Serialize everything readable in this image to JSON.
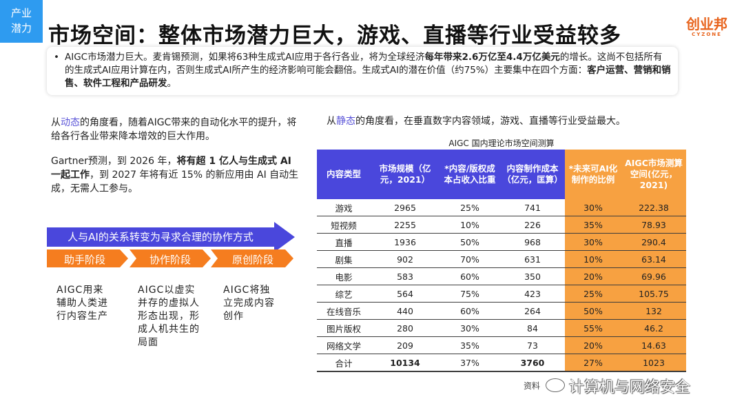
{
  "tag": {
    "line1": "产业",
    "line2": "潜力"
  },
  "title": "市场空间：整体市场潜力巨大，游戏、直播等行业受益较多",
  "logo": {
    "main": "创业邦",
    "sub": "CYZONE"
  },
  "summary": {
    "bullet": "•",
    "part1": "AIGC市场潜力巨大。麦肯锡预测，如果将63种生成式AI应用于各行各业，将为全球经济",
    "bold1": "每年带来2.6万亿至4.4万亿美元",
    "part2": "的增长。这尚不包括所有的生成式AI应用计算在内，否则生成式AI所产生的经济影响可能会翻倍。生成式AI的潜在价值（约75%）主要集中在四个方面：",
    "bold2": "客户运营、营销和销售、软件工程和产品研发",
    "part3": "。"
  },
  "left": {
    "p1_a": "从",
    "p1_hl": "动态",
    "p1_b": "的角度看，随着AIGC带来的自动化水平的提升，将给各行各业带来降本增效的巨大作用。",
    "p2_a": "Gartner预测，到 2026 年，",
    "p2_bold": "将有超 1 亿人与生成式 AI 一起工作",
    "p2_b": "，到 2027 年将有近 15% 的新应用由 AI 自动生成，无需人工参与。"
  },
  "arrow": {
    "label": "人与AI的关系转变为寻求合理的协作方式",
    "color": "#4a47dc"
  },
  "stages": [
    {
      "label": "助手阶段",
      "desc": "AIGC用来辅助人类进行内容生产"
    },
    {
      "label": "协作阶段",
      "desc": "AIGC以虚实并存的虚拟人形态出现，形成人机共生的局面"
    },
    {
      "label": "原创阶段",
      "desc": "AIGC将独立完成内容创作"
    }
  ],
  "stage_color": "#f57d1f",
  "right": {
    "a": "从",
    "hl": "静态",
    "b": "的角度看，在垂直数字内容领域，游戏、直播等行业受益最大。"
  },
  "table": {
    "title": "AIGC 国内理论市场空间测算",
    "headers": [
      "内容类型",
      "市场规模（亿元，2021）",
      "*内容/版权成本占收入比重",
      "内容制作成本（亿元，匡算）",
      "*未来可AI化制作的比例",
      "AIGC市场测算空间(亿元，2021)"
    ],
    "rows": [
      [
        "游戏",
        "2965",
        "25%",
        "741",
        "30%",
        "222.38"
      ],
      [
        "短视频",
        "2255",
        "10%",
        "226",
        "35%",
        "78.93"
      ],
      [
        "直播",
        "1936",
        "50%",
        "968",
        "30%",
        "290.4"
      ],
      [
        "剧集",
        "902",
        "70%",
        "631",
        "10%",
        "63.14"
      ],
      [
        "电影",
        "583",
        "60%",
        "350",
        "20%",
        "69.96"
      ],
      [
        "综艺",
        "564",
        "75%",
        "423",
        "25%",
        "105.75"
      ],
      [
        "在线音乐",
        "440",
        "60%",
        "264",
        "50%",
        "132"
      ],
      [
        "图片版权",
        "280",
        "30%",
        "84",
        "55%",
        "46.2"
      ],
      [
        "网络文学",
        "209",
        "35%",
        "73",
        "20%",
        "14.63"
      ],
      [
        "合计",
        "10134",
        "37%",
        "3760",
        "27%",
        "1023"
      ]
    ],
    "header_color": "#4a47dc",
    "highlight_color": "#f7a141"
  },
  "source": "资料",
  "watermark": "计算机与网络安全"
}
